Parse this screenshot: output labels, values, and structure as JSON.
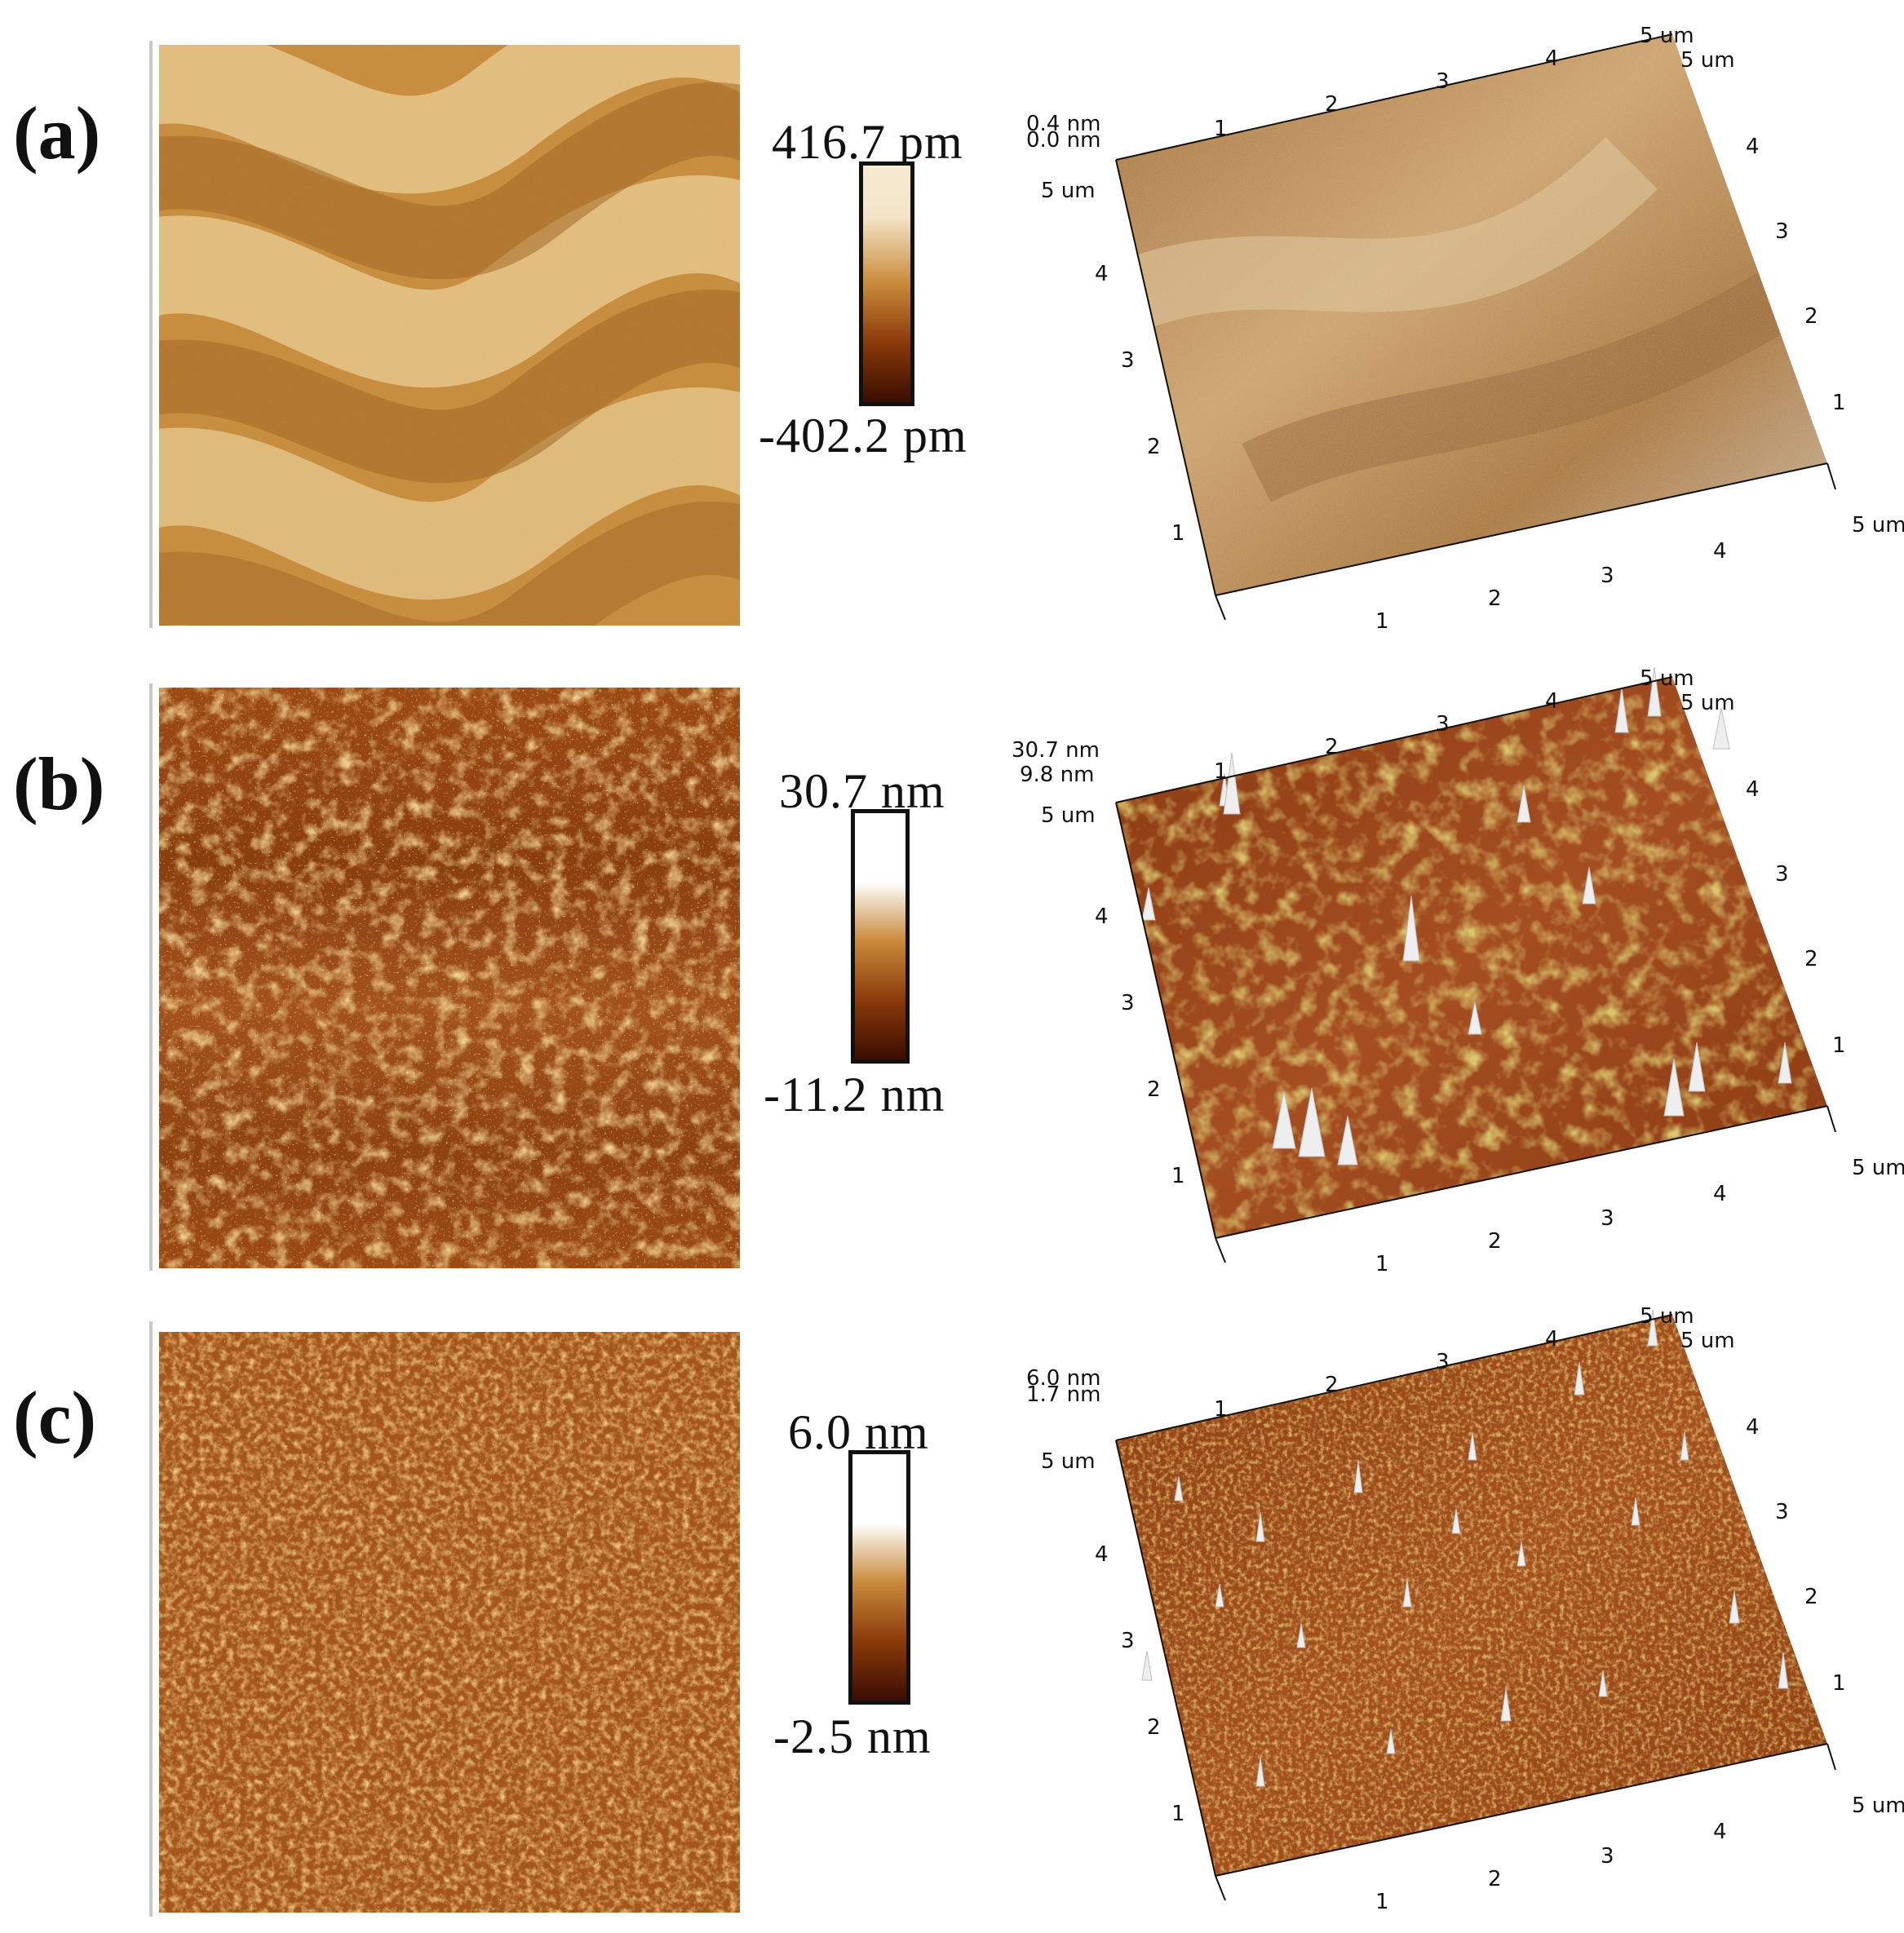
{
  "figure": {
    "panels": [
      {
        "id": "a",
        "label": "(a)",
        "colorbar": {
          "max_label": "416.7  pm",
          "min_label": "-402.2  pm",
          "max": 416.7,
          "min": -402.2,
          "unit": "pm"
        },
        "surface_3d": {
          "z_top_label": "0.4 nm",
          "z_bottom_label": "0.0 nm",
          "corner_label": "5 um",
          "top_corner_label": "5 um",
          "left_corner_label": "5 um",
          "right_corner_label": "5 um",
          "bottom_corner_label": "5 um",
          "ticks": [
            "1",
            "2",
            "3",
            "4"
          ]
        },
        "texture": "smooth-waves"
      },
      {
        "id": "b",
        "label": "(b)",
        "colorbar": {
          "max_label": "30.7  nm",
          "min_label": "-11.2  nm",
          "max": 30.7,
          "min": -11.2,
          "unit": "nm"
        },
        "surface_3d": {
          "z_top_label": "30.7 nm",
          "z_bottom_label": "9.8 nm",
          "corner_label": "5 um",
          "top_corner_label": "5 um",
          "left_corner_label": "5 um",
          "right_corner_label": "5 um",
          "bottom_corner_label": "5 um",
          "ticks": [
            "1",
            "2",
            "3",
            "4"
          ]
        },
        "texture": "clusters"
      },
      {
        "id": "c",
        "label": "(c)",
        "colorbar": {
          "max_label": "6.0  nm",
          "min_label": "-2.5  nm",
          "max": 6.0,
          "min": -2.5,
          "unit": "nm"
        },
        "surface_3d": {
          "z_top_label": "6.0 nm",
          "z_bottom_label": "1.7 nm",
          "corner_label": "5 um",
          "top_corner_label": "5 um",
          "left_corner_label": "5 um",
          "right_corner_label": "5 um",
          "bottom_corner_label": "5 um",
          "ticks": [
            "1",
            "2",
            "3",
            "4"
          ]
        },
        "texture": "fine-grains"
      }
    ],
    "colors": {
      "afm_dark": "#3a0d02",
      "afm_mid": "#b56a1c",
      "afm_light": "#f6ead2",
      "afm_white": "#ffffff"
    }
  }
}
